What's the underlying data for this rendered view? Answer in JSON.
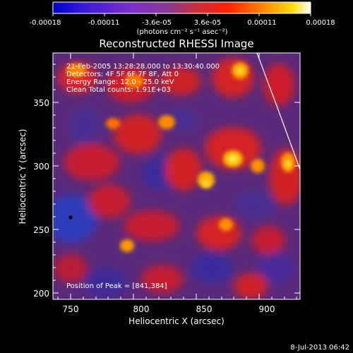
{
  "colorbar": {
    "tick_labels": [
      "-0.00018",
      "-0.00011",
      "-3.6e-05",
      "3.6e-05",
      "0.00011",
      "0.00018"
    ],
    "units_label": "(photons cm⁻² s⁻¹ asec⁻²)",
    "range": [
      -0.00018,
      0.00018
    ]
  },
  "title": "Reconstructed RHESSI Image",
  "annotations": {
    "time_range": "21-Feb-2005 13:28:28.000 to 13:30:40.000",
    "detectors": "Detectors: 4F 5F 6F 7F 8F, Att 0",
    "energy_range": "Energy Range: 12.0 - 25.0 keV",
    "clean_total": "Clean     Total counts: 1.91E+03",
    "peak_position": "Position of Peak = [841,384]"
  },
  "axes": {
    "xlabel": "Heliocentric X (arcsec)",
    "ylabel": "Heliocentric Y (arcsec)",
    "x_ticks": [
      "750",
      "800",
      "850",
      "900"
    ],
    "y_ticks": [
      "200",
      "250",
      "300",
      "350"
    ],
    "xlim": [
      730,
      925
    ],
    "ylim": [
      193,
      388
    ]
  },
  "footer_timestamp": "8-Jul-2013 06:42",
  "colors": {
    "background": "#000000",
    "text": "#ffffff"
  }
}
